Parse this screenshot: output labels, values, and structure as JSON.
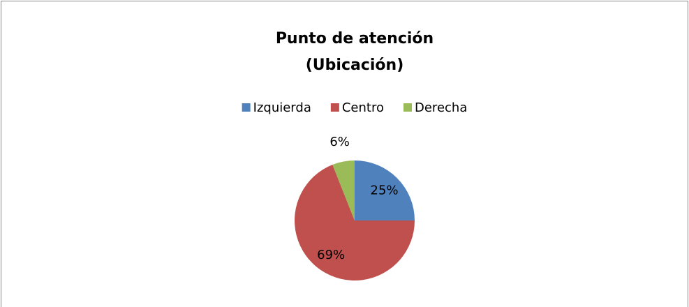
{
  "chart_data": {
    "type": "pie",
    "title": "Punto de atención",
    "subtitle": "(Ubicación)",
    "categories": [
      "Izquierda",
      "Centro",
      "Derecha"
    ],
    "values": [
      25,
      69,
      6
    ],
    "value_labels": [
      "25%",
      "69%",
      "6%"
    ],
    "colors": [
      "#4f81bd",
      "#c0504d",
      "#9bbb59"
    ],
    "legend": "top"
  }
}
